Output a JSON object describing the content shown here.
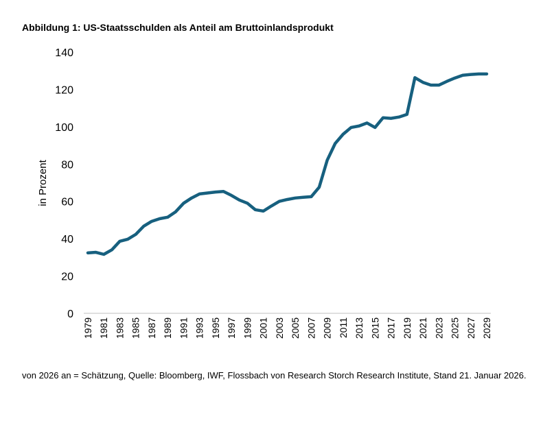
{
  "chart_data": {
    "type": "line",
    "title": "Abbildung 1: US-Staatsschulden als Anteil am Bruttoinlandsprodukt",
    "xlabel": "",
    "ylabel": "in Prozent",
    "ylim": [
      0,
      140
    ],
    "yticks": [
      0,
      20,
      40,
      60,
      80,
      100,
      120,
      140
    ],
    "xticks": [
      1979,
      1981,
      1983,
      1985,
      1987,
      1989,
      1991,
      1993,
      1995,
      1997,
      1999,
      2001,
      2003,
      2005,
      2007,
      2009,
      2011,
      2013,
      2015,
      2017,
      2019,
      2021,
      2023,
      2025,
      2027,
      2029
    ],
    "grid": false,
    "color": "#17607f",
    "x": [
      1979,
      1980,
      1981,
      1982,
      1983,
      1984,
      1985,
      1986,
      1987,
      1988,
      1989,
      1990,
      1991,
      1992,
      1993,
      1994,
      1995,
      1996,
      1997,
      1998,
      1999,
      2000,
      2001,
      2002,
      2003,
      2004,
      2005,
      2006,
      2007,
      2008,
      2009,
      2010,
      2011,
      2012,
      2013,
      2014,
      2015,
      2016,
      2017,
      2018,
      2019,
      2020,
      2021,
      2022,
      2023,
      2024,
      2025,
      2026,
      2027,
      2028,
      2029
    ],
    "values": [
      32.4,
      32.7,
      31.6,
      34,
      38.6,
      39.7,
      42.3,
      46.7,
      49.3,
      50.7,
      51.5,
      54.4,
      59,
      61.8,
      64,
      64.5,
      65,
      65.3,
      63.2,
      60.7,
      59,
      55.5,
      54.8,
      57.5,
      60,
      61,
      61.8,
      62.2,
      62.5,
      67.6,
      82,
      91,
      96,
      99.6,
      100.4,
      102,
      99.6,
      104.8,
      104.5,
      105.2,
      106.6,
      126.3,
      123.8,
      122.3,
      122.3,
      124.3,
      126.1,
      127.6,
      128,
      128.3,
      128.3
    ]
  },
  "footnote": "von 2026 an = Schätzung, Quelle: Bloomberg, IWF, Flossbach von Research Storch Research Institute, Stand 21. Januar 2026."
}
